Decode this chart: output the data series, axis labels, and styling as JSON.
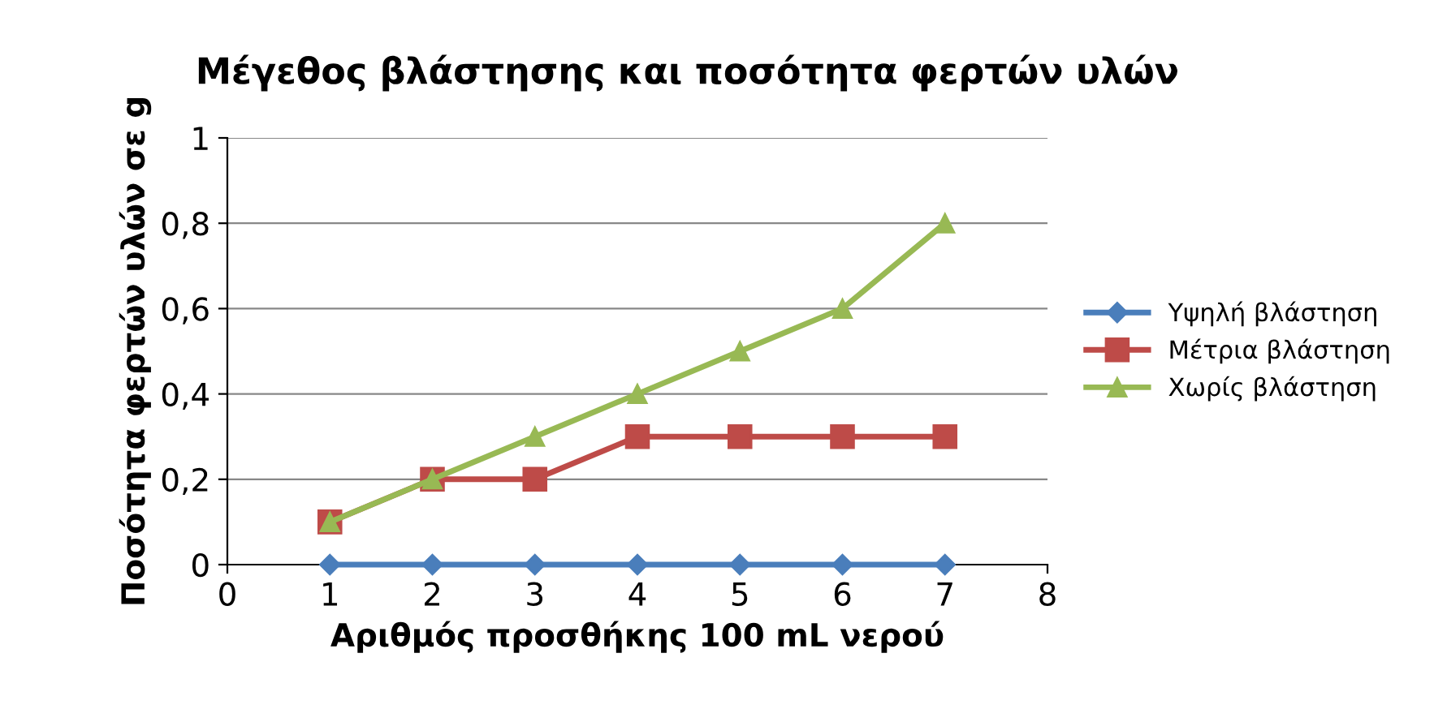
{
  "chart_data": {
    "type": "line",
    "title": "Μέγεθος βλάστησης και ποσότητα φερτών υλών",
    "xlabel": "Αριθμός προσθήκης 100 mL νερού",
    "ylabel": "Ποσότητα φερτών υλών σε g",
    "x": [
      1,
      2,
      3,
      4,
      5,
      6,
      7
    ],
    "series": [
      {
        "name": "Υψηλή βλάστηση",
        "color": "#4a7ebb",
        "marker": "diamond",
        "values": [
          0,
          0,
          0,
          0,
          0,
          0,
          0
        ]
      },
      {
        "name": "Μέτρια βλάστηση",
        "color": "#be4b48",
        "marker": "square",
        "values": [
          0.1,
          0.2,
          0.2,
          0.3,
          0.3,
          0.3,
          0.3
        ]
      },
      {
        "name": "Χωρίς βλάστηση",
        "color": "#98b954",
        "marker": "triangle",
        "values": [
          0.1,
          0.2,
          0.3,
          0.4,
          0.5,
          0.6,
          0.8
        ]
      }
    ],
    "xlim": [
      0,
      8
    ],
    "xticks": [
      0,
      1,
      2,
      3,
      4,
      5,
      6,
      7,
      8
    ],
    "ylim": [
      0,
      1
    ],
    "yticks": [
      0,
      {
        "value": 0.2,
        "label": "0,2"
      },
      {
        "value": 0.4,
        "label": "0,4"
      },
      {
        "value": 0.6,
        "label": "0,6"
      },
      {
        "value": 0.8,
        "label": "0,8"
      },
      1
    ],
    "grid": "y",
    "legend": "right"
  }
}
